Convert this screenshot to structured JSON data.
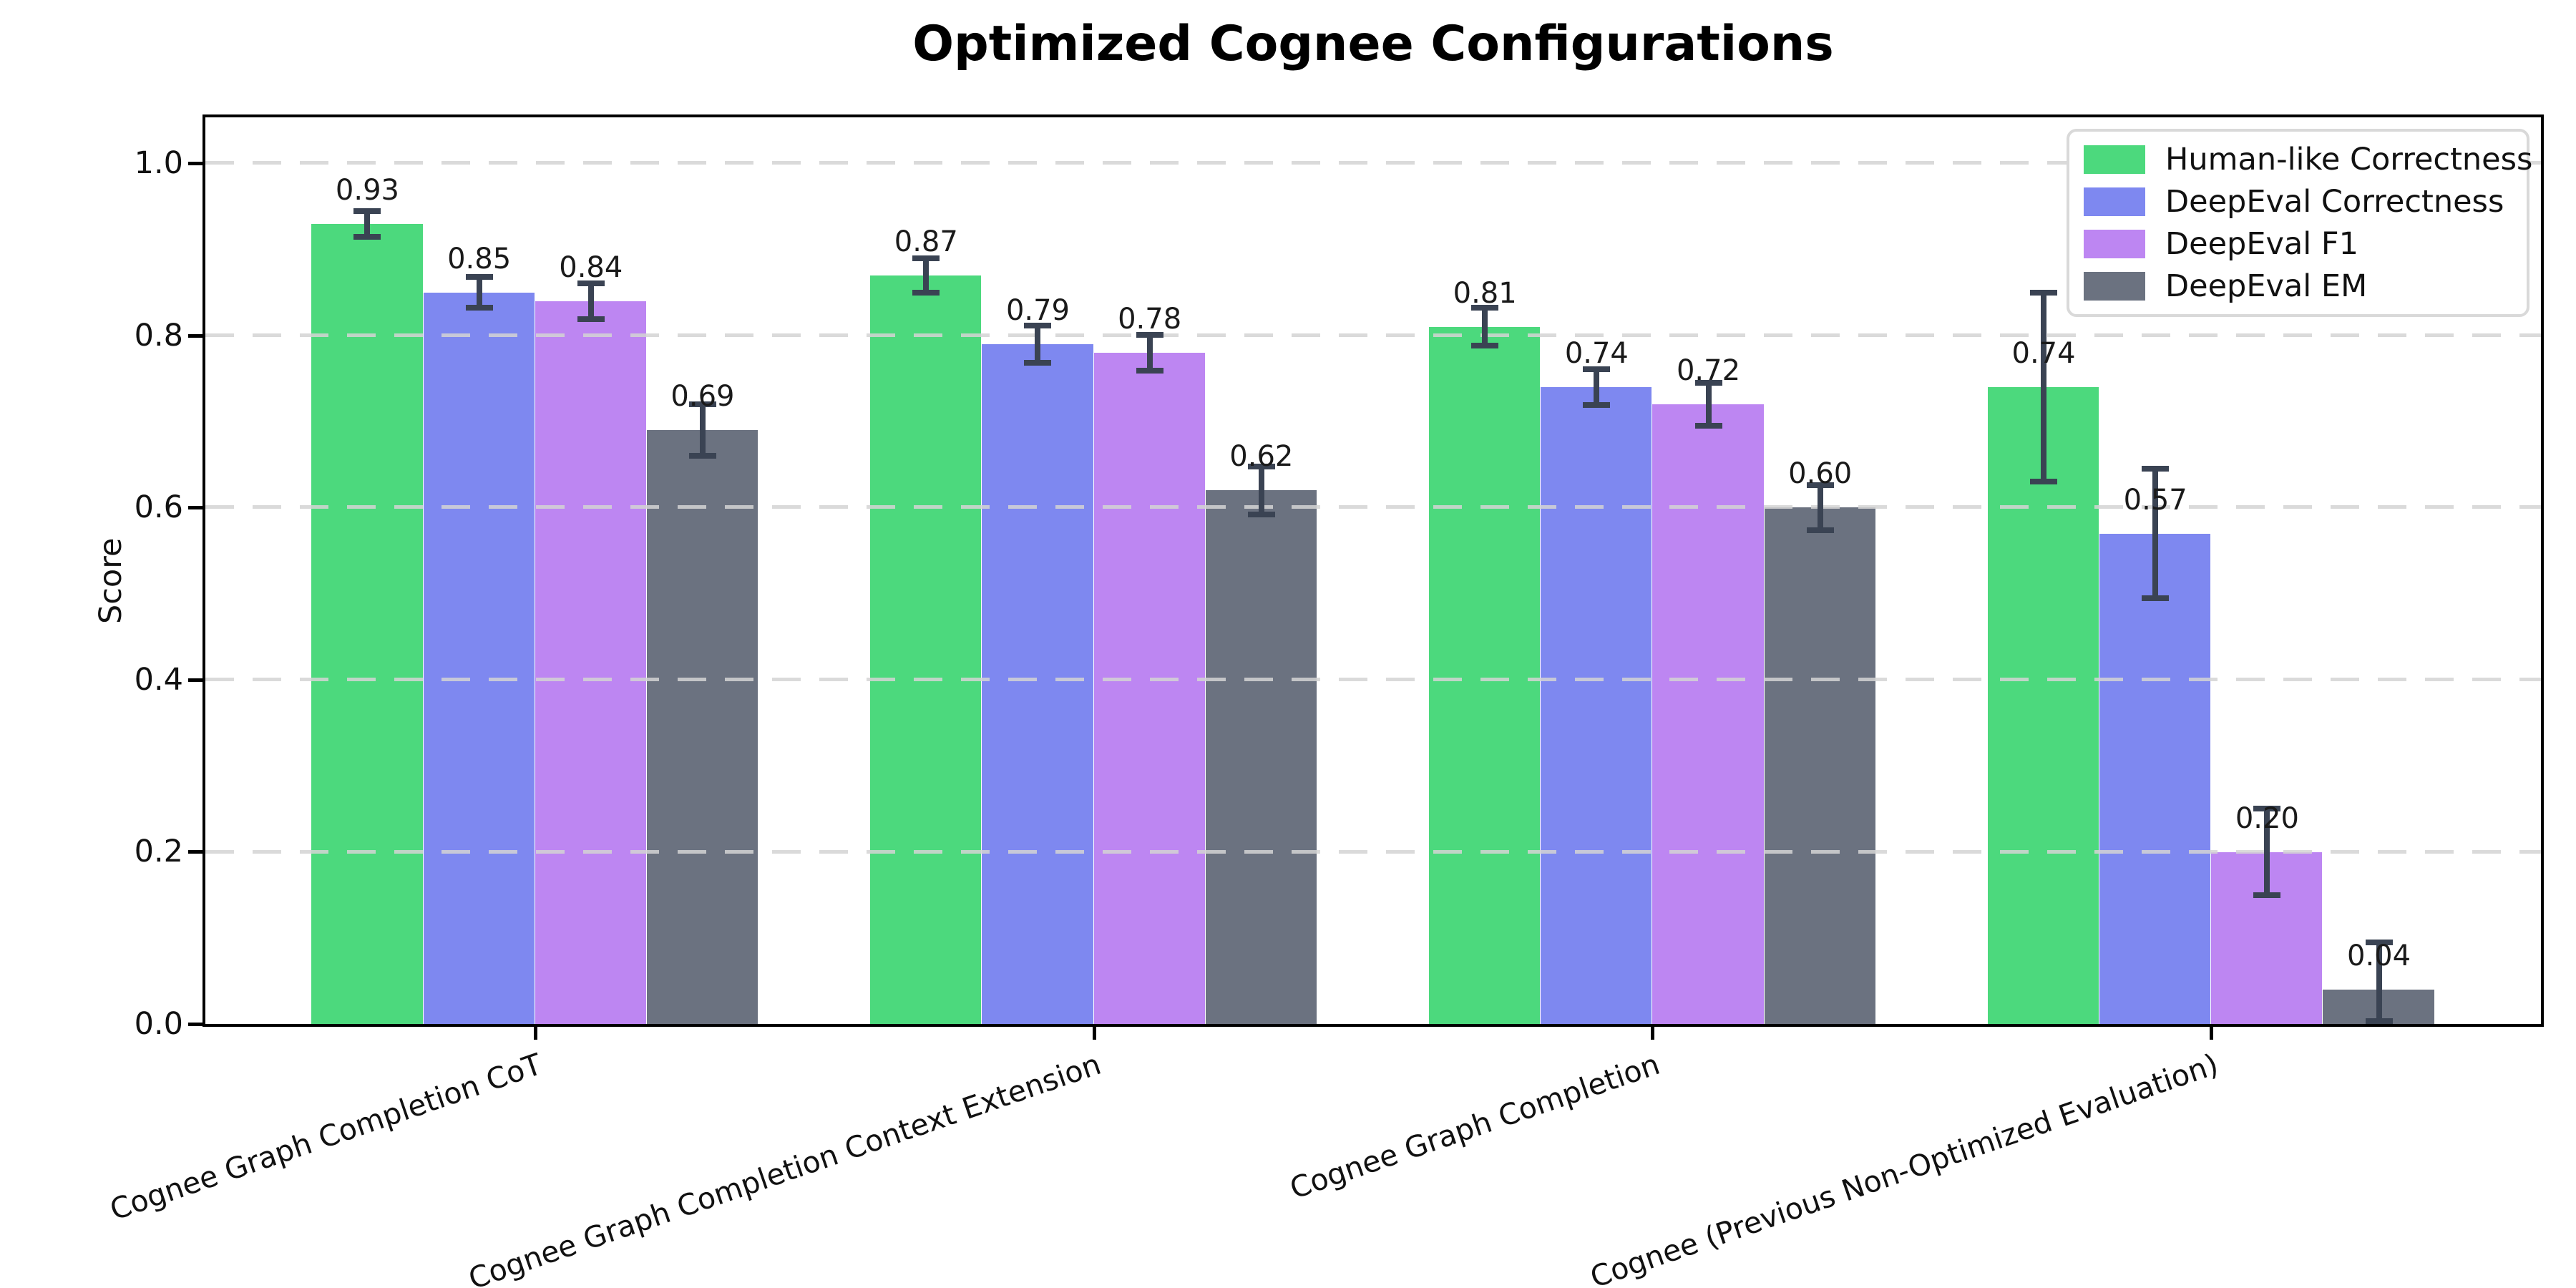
{
  "chart_data": {
    "type": "bar",
    "title": "Optimized Cognee Configurations",
    "xlabel": "",
    "ylabel": "Score",
    "ylim": [
      0,
      1.05
    ],
    "yticks": [
      "0.0",
      "0.2",
      "0.4",
      "0.6",
      "0.8",
      "1.0"
    ],
    "grid": {
      "axis": "y",
      "style": "dashed",
      "color": "#d4d4d4"
    },
    "legend_position": "upper right",
    "categories": [
      "Cognee Graph Completion CoT",
      "Cognee Graph Completion Context Extension",
      "Cognee Graph Completion",
      "Cognee (Previous Non-Optimized Evaluation)"
    ],
    "series": [
      {
        "name": "Human-like Correctness",
        "color": "#4cd97d",
        "values": [
          0.93,
          0.87,
          0.81,
          0.74
        ],
        "errors": [
          0.015,
          0.02,
          0.022,
          0.11
        ]
      },
      {
        "name": "DeepEval Correctness",
        "color": "#7e88f0",
        "values": [
          0.85,
          0.79,
          0.74,
          0.57
        ],
        "errors": [
          0.018,
          0.022,
          0.021,
          0.075
        ]
      },
      {
        "name": "DeepEval F1",
        "color": "#bd86f2",
        "values": [
          0.84,
          0.78,
          0.72,
          0.2
        ],
        "errors": [
          0.021,
          0.021,
          0.025,
          0.05
        ]
      },
      {
        "name": "DeepEval EM",
        "color": "#6b7280",
        "values": [
          0.69,
          0.62,
          0.6,
          0.04
        ],
        "errors": [
          0.03,
          0.028,
          0.026,
          0.055
        ]
      }
    ],
    "value_label_decimals": 2,
    "error_bar_color": "#3a4353",
    "axis_color": "#000000",
    "text_color": "#111111"
  }
}
